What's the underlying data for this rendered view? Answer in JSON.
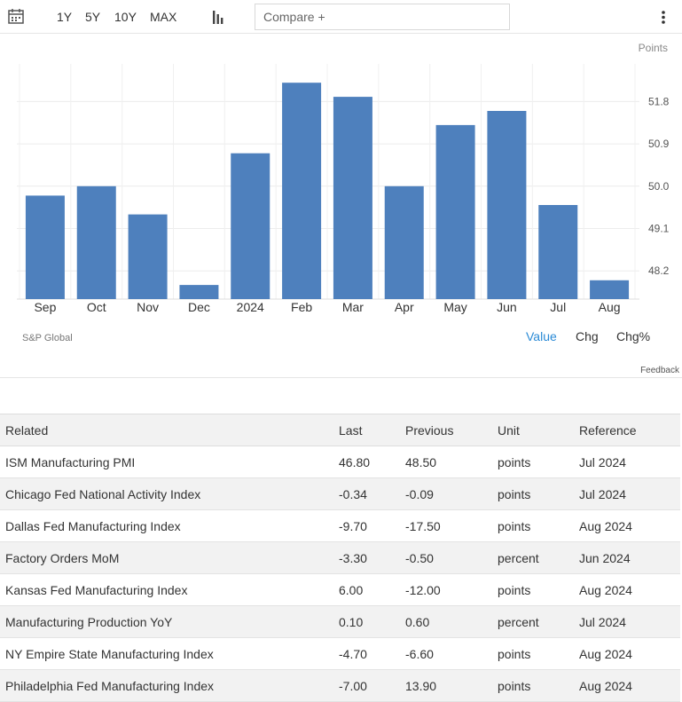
{
  "toolbar": {
    "ranges": [
      "1Y",
      "5Y",
      "10Y",
      "MAX"
    ],
    "compare_placeholder": "Compare +",
    "icons": [
      "calendar-icon",
      "bar-chart-icon",
      "more-vert-icon"
    ]
  },
  "chart_meta": {
    "unit_label": "Points",
    "source": "S&P Global",
    "bar_color": "#4e80bd",
    "view_options": [
      "Value",
      "Chg",
      "Chg%"
    ],
    "active_view_color": "#2a8ad6",
    "feedback": "Feedback"
  },
  "chart_data": {
    "type": "bar",
    "categories": [
      "Sep",
      "Oct",
      "Nov",
      "Dec",
      "2024",
      "Feb",
      "Mar",
      "Apr",
      "May",
      "Jun",
      "Jul",
      "Aug"
    ],
    "values": [
      49.8,
      50.0,
      49.4,
      47.9,
      50.7,
      52.2,
      51.9,
      50.0,
      51.3,
      51.6,
      49.6,
      48.0
    ],
    "y_ticks": [
      "51.8",
      "50.9",
      "50.0",
      "49.1",
      "48.2"
    ],
    "ylim": [
      47.6,
      52.6
    ],
    "grid": true,
    "y_axis_position": "right"
  },
  "table": {
    "headers": [
      "Related",
      "Last",
      "Previous",
      "Unit",
      "Reference"
    ],
    "rows": [
      [
        "ISM Manufacturing PMI",
        "46.80",
        "48.50",
        "points",
        "Jul 2024"
      ],
      [
        "Chicago Fed National Activity Index",
        "-0.34",
        "-0.09",
        "points",
        "Jul 2024"
      ],
      [
        "Dallas Fed Manufacturing Index",
        "-9.70",
        "-17.50",
        "points",
        "Aug 2024"
      ],
      [
        "Factory Orders MoM",
        "-3.30",
        "-0.50",
        "percent",
        "Jun 2024"
      ],
      [
        "Kansas Fed Manufacturing Index",
        "6.00",
        "-12.00",
        "points",
        "Aug 2024"
      ],
      [
        "Manufacturing Production YoY",
        "0.10",
        "0.60",
        "percent",
        "Jul 2024"
      ],
      [
        "NY Empire State Manufacturing Index",
        "-4.70",
        "-6.60",
        "points",
        "Aug 2024"
      ],
      [
        "Philadelphia Fed Manufacturing Index",
        "-7.00",
        "13.90",
        "points",
        "Aug 2024"
      ]
    ]
  }
}
